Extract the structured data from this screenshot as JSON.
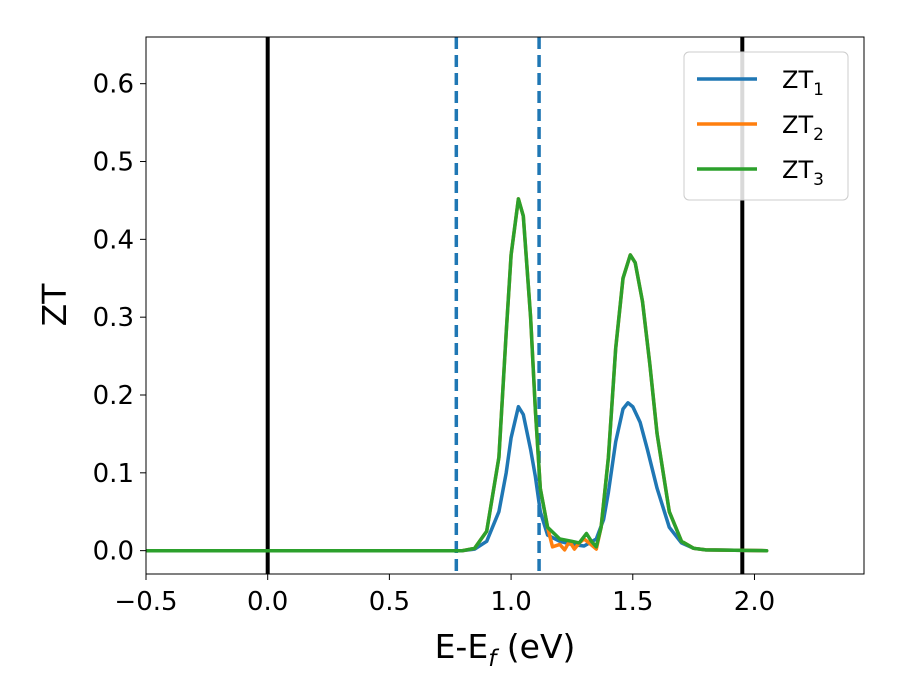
{
  "chart_data": {
    "type": "line",
    "xlabel": "E-E",
    "xlabel_sub": "f",
    "xlabel_unit": " (eV)",
    "ylabel": "ZT",
    "xlim": [
      -0.5,
      2.45
    ],
    "ylim": [
      -0.03,
      0.66
    ],
    "xticks": [
      -0.5,
      0.0,
      0.5,
      1.0,
      1.5,
      2.0
    ],
    "xtick_labels": [
      "−0.5",
      "0.0",
      "0.5",
      "1.0",
      "1.5",
      "2.0"
    ],
    "yticks": [
      0.0,
      0.1,
      0.2,
      0.3,
      0.4,
      0.5,
      0.6
    ],
    "ytick_labels": [
      "0.0",
      "0.1",
      "0.2",
      "0.3",
      "0.4",
      "0.5",
      "0.6"
    ],
    "grid": false,
    "legend_position": "top-right",
    "vlines": [
      {
        "x": 0.0,
        "style": "solid",
        "color": "#000000"
      },
      {
        "x": 1.95,
        "style": "solid",
        "color": "#000000"
      },
      {
        "x": 0.775,
        "style": "dashed",
        "color": "#1f77b4"
      },
      {
        "x": 1.115,
        "style": "dashed",
        "color": "#1f77b4"
      }
    ],
    "series": [
      {
        "name": "ZT",
        "name_sub": "1",
        "color": "#1f77b4",
        "points": [
          [
            -0.5,
            0
          ],
          [
            0.8,
            0
          ],
          [
            0.85,
            0.002
          ],
          [
            0.9,
            0.012
          ],
          [
            0.95,
            0.05
          ],
          [
            0.98,
            0.1
          ],
          [
            1.0,
            0.145
          ],
          [
            1.03,
            0.185
          ],
          [
            1.05,
            0.175
          ],
          [
            1.08,
            0.13
          ],
          [
            1.1,
            0.095
          ],
          [
            1.12,
            0.05
          ],
          [
            1.15,
            0.02
          ],
          [
            1.2,
            0.012
          ],
          [
            1.25,
            0.008
          ],
          [
            1.3,
            0.006
          ],
          [
            1.35,
            0.015
          ],
          [
            1.38,
            0.04
          ],
          [
            1.4,
            0.075
          ],
          [
            1.43,
            0.14
          ],
          [
            1.46,
            0.182
          ],
          [
            1.48,
            0.19
          ],
          [
            1.5,
            0.185
          ],
          [
            1.53,
            0.165
          ],
          [
            1.56,
            0.13
          ],
          [
            1.6,
            0.08
          ],
          [
            1.65,
            0.03
          ],
          [
            1.7,
            0.01
          ],
          [
            1.75,
            0.003
          ],
          [
            1.8,
            0.001
          ],
          [
            2.05,
            0
          ]
        ]
      },
      {
        "name": "ZT",
        "name_sub": "2",
        "color": "#ff7f0e",
        "points": [
          [
            -0.5,
            0
          ],
          [
            0.8,
            0
          ],
          [
            0.85,
            0.003
          ],
          [
            0.9,
            0.025
          ],
          [
            0.95,
            0.12
          ],
          [
            0.98,
            0.28
          ],
          [
            1.0,
            0.38
          ],
          [
            1.03,
            0.452
          ],
          [
            1.05,
            0.43
          ],
          [
            1.08,
            0.3
          ],
          [
            1.1,
            0.18
          ],
          [
            1.12,
            0.08
          ],
          [
            1.15,
            0.03
          ],
          [
            1.17,
            0.005
          ],
          [
            1.2,
            0.008
          ],
          [
            1.22,
            0.001
          ],
          [
            1.24,
            0.012
          ],
          [
            1.26,
            0.002
          ],
          [
            1.28,
            0.01
          ],
          [
            1.3,
            0.015
          ],
          [
            1.32,
            0.01
          ],
          [
            1.35,
            0.002
          ],
          [
            1.37,
            0.03
          ],
          [
            1.4,
            0.12
          ],
          [
            1.43,
            0.26
          ],
          [
            1.46,
            0.35
          ],
          [
            1.49,
            0.38
          ],
          [
            1.51,
            0.37
          ],
          [
            1.54,
            0.32
          ],
          [
            1.57,
            0.24
          ],
          [
            1.6,
            0.15
          ],
          [
            1.65,
            0.05
          ],
          [
            1.7,
            0.012
          ],
          [
            1.75,
            0.003
          ],
          [
            1.8,
            0.001
          ],
          [
            2.05,
            0
          ]
        ]
      },
      {
        "name": "ZT",
        "name_sub": "3",
        "color": "#2ca02c",
        "points": [
          [
            -0.5,
            0
          ],
          [
            0.8,
            0
          ],
          [
            0.85,
            0.003
          ],
          [
            0.9,
            0.025
          ],
          [
            0.95,
            0.12
          ],
          [
            0.98,
            0.28
          ],
          [
            1.0,
            0.38
          ],
          [
            1.03,
            0.452
          ],
          [
            1.05,
            0.43
          ],
          [
            1.08,
            0.3
          ],
          [
            1.1,
            0.18
          ],
          [
            1.12,
            0.08
          ],
          [
            1.15,
            0.03
          ],
          [
            1.2,
            0.015
          ],
          [
            1.25,
            0.012
          ],
          [
            1.28,
            0.01
          ],
          [
            1.31,
            0.022
          ],
          [
            1.33,
            0.012
          ],
          [
            1.35,
            0.005
          ],
          [
            1.37,
            0.03
          ],
          [
            1.4,
            0.12
          ],
          [
            1.43,
            0.26
          ],
          [
            1.46,
            0.35
          ],
          [
            1.49,
            0.38
          ],
          [
            1.51,
            0.37
          ],
          [
            1.54,
            0.32
          ],
          [
            1.57,
            0.24
          ],
          [
            1.6,
            0.15
          ],
          [
            1.65,
            0.05
          ],
          [
            1.7,
            0.012
          ],
          [
            1.75,
            0.003
          ],
          [
            1.8,
            0.001
          ],
          [
            2.05,
            0
          ]
        ]
      }
    ]
  }
}
